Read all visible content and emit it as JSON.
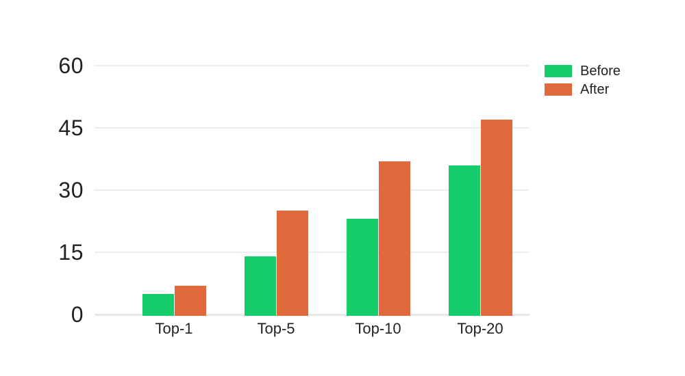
{
  "chart_data": {
    "type": "bar",
    "title": "",
    "xlabel": "",
    "ylabel": "",
    "categories": [
      "Top-1",
      "Top-5",
      "Top-10",
      "Top-20"
    ],
    "series": [
      {
        "name": "Before",
        "color": "#15CE6B",
        "values": [
          5,
          14,
          23,
          36
        ]
      },
      {
        "name": "After",
        "color": "#E2693C",
        "values": [
          7,
          25,
          37,
          47
        ]
      }
    ],
    "yticks": [
      0,
      15,
      30,
      45,
      60
    ],
    "ylim": [
      0,
      60
    ],
    "grid": true,
    "legend_position": "top-right",
    "style": {
      "grid_color": "#ededed",
      "baseline_color": "#e7e7e7",
      "text_color": "#222222",
      "background": "#ffffff"
    }
  }
}
